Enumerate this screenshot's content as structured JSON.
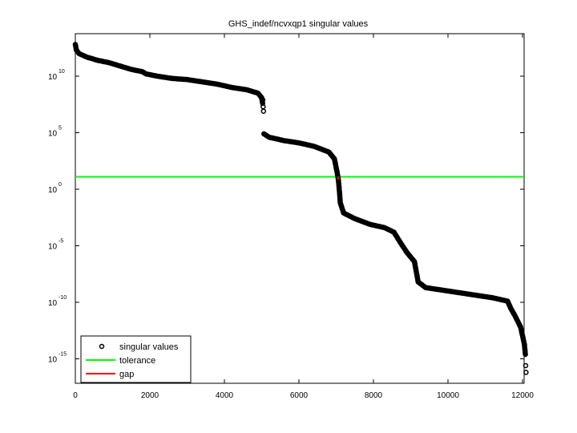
{
  "chart_data": {
    "type": "scatter",
    "title": "GHS_indef/ncvxqp1 singular values",
    "xlabel": "",
    "ylabel": "",
    "xscale": "linear",
    "yscale": "log",
    "xlim": [
      0,
      12100
    ],
    "ylim_exp": [
      -18,
      13
    ],
    "xticks": [
      0,
      2000,
      4000,
      6000,
      8000,
      10000,
      12000
    ],
    "xtick_labels": [
      "0",
      "2000",
      "4000",
      "6000",
      "8000",
      "10000",
      "12000"
    ],
    "yticks_exp": [
      10,
      5,
      0,
      -5,
      -10,
      -15
    ],
    "ytick_labels": [
      {
        "base": "10",
        "exp": "10"
      },
      {
        "base": "10",
        "exp": "5"
      },
      {
        "base": "10",
        "exp": "0"
      },
      {
        "base": "10",
        "exp": "-5"
      },
      {
        "base": "10",
        "exp": "-10"
      },
      {
        "base": "10",
        "exp": "-15"
      }
    ],
    "grid": false,
    "legend_position": "lower left",
    "legend": [
      {
        "label": "singular values",
        "kind": "marker",
        "color": "#000000"
      },
      {
        "label": "tolerance",
        "kind": "line",
        "color": "#00ff00"
      },
      {
        "label": "gap",
        "kind": "line",
        "color": "#ff0000"
      }
    ],
    "series": [
      {
        "name": "singular values",
        "marker": "circle",
        "color": "#000000",
        "points_log10": [
          [
            0,
            12.8
          ],
          [
            30,
            12.3
          ],
          [
            100,
            12.0
          ],
          [
            300,
            11.7
          ],
          [
            600,
            11.4
          ],
          [
            900,
            11.2
          ],
          [
            1200,
            10.9
          ],
          [
            1500,
            10.6
          ],
          [
            1800,
            10.4
          ],
          [
            1900,
            10.2
          ],
          [
            2200,
            10.0
          ],
          [
            2600,
            9.8
          ],
          [
            3000,
            9.7
          ],
          [
            3400,
            9.5
          ],
          [
            3800,
            9.3
          ],
          [
            4200,
            9.0
          ],
          [
            4600,
            8.8
          ],
          [
            4900,
            8.5
          ],
          [
            5000,
            8.1
          ],
          [
            5030,
            7.5
          ],
          [
            5060,
            4.9
          ],
          [
            5200,
            4.6
          ],
          [
            5600,
            4.3
          ],
          [
            6000,
            4.1
          ],
          [
            6400,
            3.8
          ],
          [
            6800,
            3.3
          ],
          [
            6950,
            2.7
          ],
          [
            7020,
            1.6
          ],
          [
            7060,
            0.8
          ],
          [
            7090,
            -0.3
          ],
          [
            7110,
            -1.2
          ],
          [
            7200,
            -2.1
          ],
          [
            7500,
            -2.6
          ],
          [
            7900,
            -3.1
          ],
          [
            8300,
            -3.4
          ],
          [
            8550,
            -3.8
          ],
          [
            8700,
            -4.6
          ],
          [
            8900,
            -5.6
          ],
          [
            9100,
            -6.4
          ],
          [
            9150,
            -7.3
          ],
          [
            9200,
            -8.2
          ],
          [
            9400,
            -8.7
          ],
          [
            10000,
            -9.0
          ],
          [
            10600,
            -9.3
          ],
          [
            11200,
            -9.6
          ],
          [
            11600,
            -9.9
          ],
          [
            11680,
            -10.5
          ],
          [
            11800,
            -11.2
          ],
          [
            11950,
            -12.2
          ],
          [
            12050,
            -13.7
          ],
          [
            12080,
            -14.7
          ],
          [
            12090,
            -16.7
          ],
          [
            12095,
            -17.2
          ]
        ]
      }
    ],
    "tolerance": {
      "value_log10": 1.1,
      "color": "#00ff00"
    },
    "gap": {
      "index": 7050,
      "value_log10": 1.0,
      "color": "#ff0000"
    }
  }
}
